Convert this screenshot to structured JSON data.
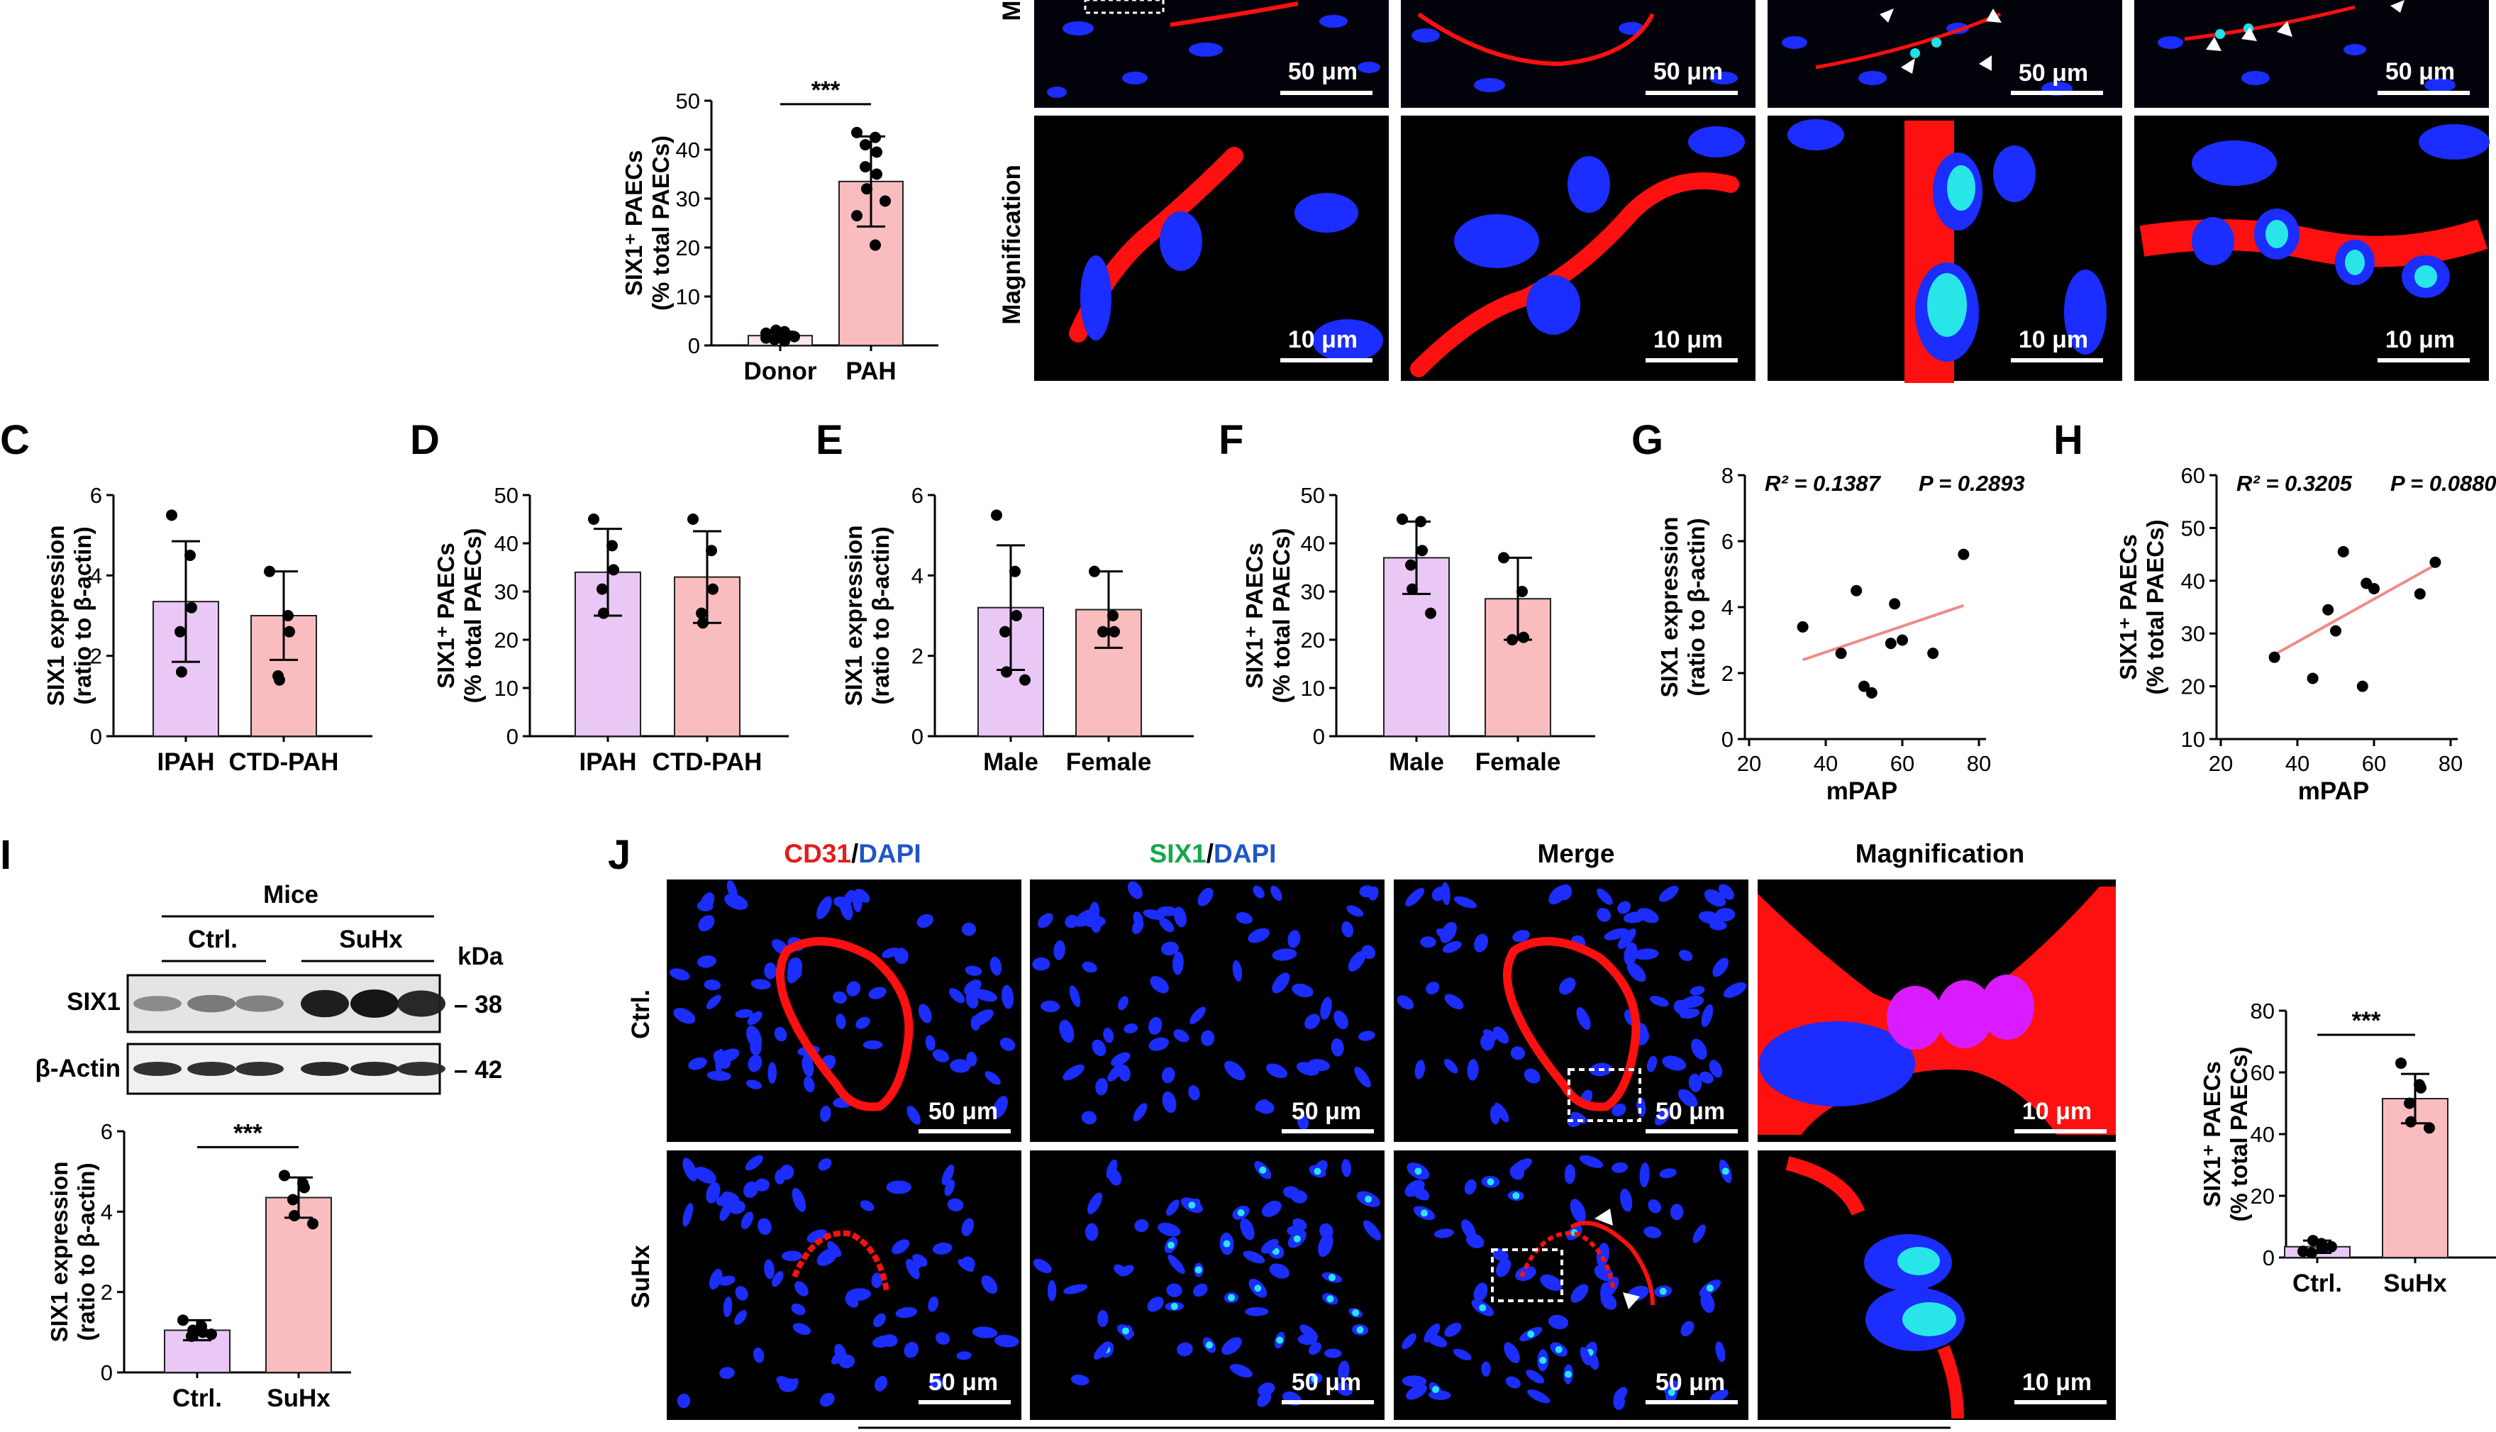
{
  "panel_letters": [
    "C",
    "D",
    "E",
    "F",
    "G",
    "H",
    "I",
    "J"
  ],
  "micrographs": {
    "top_row_labels": [
      "Magnification"
    ],
    "top_row_fragment_label": "M",
    "scale_labels": {
      "um50": "50 μm",
      "um10": "10 μm"
    },
    "J_headers": {
      "cd31": "CD31",
      "six1": "SIX1",
      "dapi": "DAPI",
      "sep": "/",
      "merge": "Merge",
      "magnification": "Magnification"
    },
    "J_rows": [
      "Ctrl.",
      "SuHx"
    ]
  },
  "western_blot": {
    "title": "Mice",
    "groups": [
      "Ctrl.",
      "SuHx"
    ],
    "kda_label": "kDa",
    "bands": [
      {
        "name": "SIX1",
        "kda": "– 38",
        "intensity": [
          0.35,
          0.45,
          0.4,
          0.95,
          1.0,
          0.9
        ]
      },
      {
        "name": "β-Actin",
        "kda": "– 42",
        "intensity": [
          0.85,
          0.85,
          0.85,
          0.9,
          0.9,
          0.85
        ]
      }
    ]
  },
  "colors": {
    "purple_fill": "#e9c8f6",
    "pink_fill": "#f9bdbf",
    "bar_edge": "#222222",
    "fit_line": "#f08a8a",
    "dapi_blue": "#1b2dff",
    "cd31_red": "#ff1010",
    "six1_green": "#13a84a",
    "header_blue": "#1f56c8",
    "header_red": "#e31d1d"
  },
  "chart_data": [
    {
      "id": "B",
      "type": "bar",
      "categories": [
        "Donor",
        "PAH"
      ],
      "ylabel": "SIX1⁺ PAECs (% total PAECs)",
      "ylabel_lines": [
        "SIX1⁺ PAECs",
        "(% total PAECs)"
      ],
      "ylim": [
        0,
        50
      ],
      "yticks": [
        0,
        10,
        20,
        30,
        40,
        50
      ],
      "values": [
        2,
        33.5
      ],
      "errors": [
        0.8,
        9.2
      ],
      "points": [
        [
          1.5,
          2.8,
          2.2,
          1.2,
          3.1,
          1.8,
          2.5,
          0.9
        ],
        [
          43.5,
          42.5,
          39.5,
          36.5,
          32,
          29.5,
          26.5,
          20.5,
          35,
          41
        ]
      ],
      "significance": "***"
    },
    {
      "id": "C",
      "type": "bar",
      "categories": [
        "IPAH",
        "CTD-PAH"
      ],
      "ylabel": "SIX1 expression (ratio to β-actin)",
      "ylabel_lines": [
        "SIX1 expression",
        "(ratio to β-actin)"
      ],
      "ylim": [
        0,
        6
      ],
      "yticks": [
        0,
        2,
        4,
        6
      ],
      "values": [
        3.35,
        3.0
      ],
      "errors": [
        1.5,
        1.1
      ],
      "points": [
        [
          5.5,
          4.5,
          3.2,
          2.6,
          1.6
        ],
        [
          4.1,
          3.0,
          2.6,
          1.5,
          1.4
        ]
      ]
    },
    {
      "id": "D",
      "type": "bar",
      "categories": [
        "IPAH",
        "CTD-PAH"
      ],
      "ylabel": "SIX1⁺ PAECs (% total PAECs)",
      "ylabel_lines": [
        "SIX1⁺ PAECs",
        "(% total PAECs)"
      ],
      "ylim": [
        0,
        50
      ],
      "yticks": [
        0,
        10,
        20,
        30,
        40,
        50
      ],
      "values": [
        34,
        33
      ],
      "errors": [
        9,
        9.5
      ],
      "points": [
        [
          45,
          39.5,
          34.5,
          30.5,
          25.5
        ],
        [
          45,
          38.5,
          30.5,
          25.5,
          23.5
        ]
      ]
    },
    {
      "id": "E",
      "type": "bar",
      "categories": [
        "Male",
        "Female"
      ],
      "ylabel": "SIX1 expression (ratio to β-actin)",
      "ylabel_lines": [
        "SIX1 expression",
        "(ratio to β-actin)"
      ],
      "ylim": [
        0,
        6
      ],
      "yticks": [
        0,
        2,
        4,
        6
      ],
      "values": [
        3.2,
        3.15
      ],
      "errors": [
        1.55,
        0.95
      ],
      "points": [
        [
          5.5,
          4.1,
          3.0,
          2.6,
          1.6,
          1.4
        ],
        [
          4.1,
          3.0,
          2.6,
          2.6
        ]
      ]
    },
    {
      "id": "F",
      "type": "bar",
      "categories": [
        "Male",
        "Female"
      ],
      "ylabel": "SIX1⁺ PAECs (% total PAECs)",
      "ylabel_lines": [
        "SIX1⁺ PAECs",
        "(% total PAECs)"
      ],
      "ylim": [
        0,
        50
      ],
      "yticks": [
        0,
        10,
        20,
        30,
        40,
        50
      ],
      "values": [
        37,
        28.5
      ],
      "errors": [
        7.5,
        8.5
      ],
      "points": [
        [
          45,
          44.5,
          38.5,
          35.5,
          30.5,
          25.5
        ],
        [
          37,
          30,
          20.5,
          20
        ]
      ]
    },
    {
      "id": "G",
      "type": "scatter",
      "xlabel": "mPAP",
      "ylabel": "SIX1 expression (ratio to β-actin)",
      "ylabel_lines": [
        "SIX1 expression",
        "(ratio to β-actin)"
      ],
      "xlim": [
        20,
        80
      ],
      "ylim": [
        0,
        8
      ],
      "xticks": [
        20,
        40,
        60,
        80
      ],
      "yticks": [
        0,
        2,
        4,
        6,
        8
      ],
      "points": [
        [
          34,
          3.4
        ],
        [
          44,
          2.6
        ],
        [
          48,
          4.5
        ],
        [
          50,
          1.6
        ],
        [
          52,
          1.4
        ],
        [
          57,
          2.9
        ],
        [
          58,
          4.1
        ],
        [
          60,
          3.0
        ],
        [
          68,
          2.6
        ],
        [
          76,
          5.6
        ]
      ],
      "fit": [
        [
          34,
          2.4
        ],
        [
          76,
          4.05
        ]
      ],
      "r2_label": "R² = 0.1387",
      "p_label": "P = 0.2893"
    },
    {
      "id": "H",
      "type": "scatter",
      "xlabel": "mPAP",
      "ylabel": "SIX1⁺ PAECs (% total PAECs)",
      "ylabel_lines": [
        "SIX1⁺ PAECs",
        "(% total PAECs)"
      ],
      "xlim": [
        20,
        80
      ],
      "ylim": [
        10,
        60
      ],
      "xticks": [
        20,
        40,
        60,
        80
      ],
      "yticks": [
        10,
        20,
        30,
        40,
        50,
        60
      ],
      "points": [
        [
          34,
          25.5
        ],
        [
          44,
          21.5
        ],
        [
          48,
          34.5
        ],
        [
          50,
          30.5
        ],
        [
          52,
          45.5
        ],
        [
          57,
          20
        ],
        [
          58,
          39.5
        ],
        [
          60,
          38.5
        ],
        [
          72,
          37.5
        ],
        [
          76,
          43.5
        ]
      ],
      "fit": [
        [
          34,
          26
        ],
        [
          76,
          43
        ]
      ],
      "r2_label": "R² = 0.3205",
      "p_label": "P = 0.0880"
    },
    {
      "id": "I",
      "type": "bar",
      "categories": [
        "Ctrl.",
        "SuHx"
      ],
      "ylabel": "SIX1 expression (ratio to β-actin)",
      "ylabel_lines": [
        "SIX1 expression",
        "(ratio to β-actin)"
      ],
      "ylim": [
        0,
        6
      ],
      "yticks": [
        0,
        2,
        4,
        6
      ],
      "values": [
        1.05,
        4.35
      ],
      "errors": [
        0.25,
        0.5
      ],
      "points": [
        [
          1.3,
          1.15,
          1.0,
          0.9,
          1.05,
          0.95
        ],
        [
          4.9,
          4.7,
          4.6,
          4.3,
          3.9,
          3.7
        ]
      ],
      "significance": "***"
    },
    {
      "id": "J",
      "type": "bar",
      "categories": [
        "Ctrl.",
        "SuHx"
      ],
      "ylabel": "SIX1⁺ PAECs (% total PAECs)",
      "ylabel_lines": [
        "SIX1⁺ PAECs",
        "(% total PAECs)"
      ],
      "ylim": [
        0,
        80
      ],
      "yticks": [
        0,
        20,
        40,
        60,
        80
      ],
      "values": [
        3.5,
        51.5
      ],
      "errors": [
        2,
        8
      ],
      "points": [
        [
          2,
          4.5,
          3,
          1.5,
          5.5,
          3.5
        ],
        [
          63,
          56,
          55,
          50,
          44,
          42
        ]
      ],
      "significance": "***"
    }
  ]
}
